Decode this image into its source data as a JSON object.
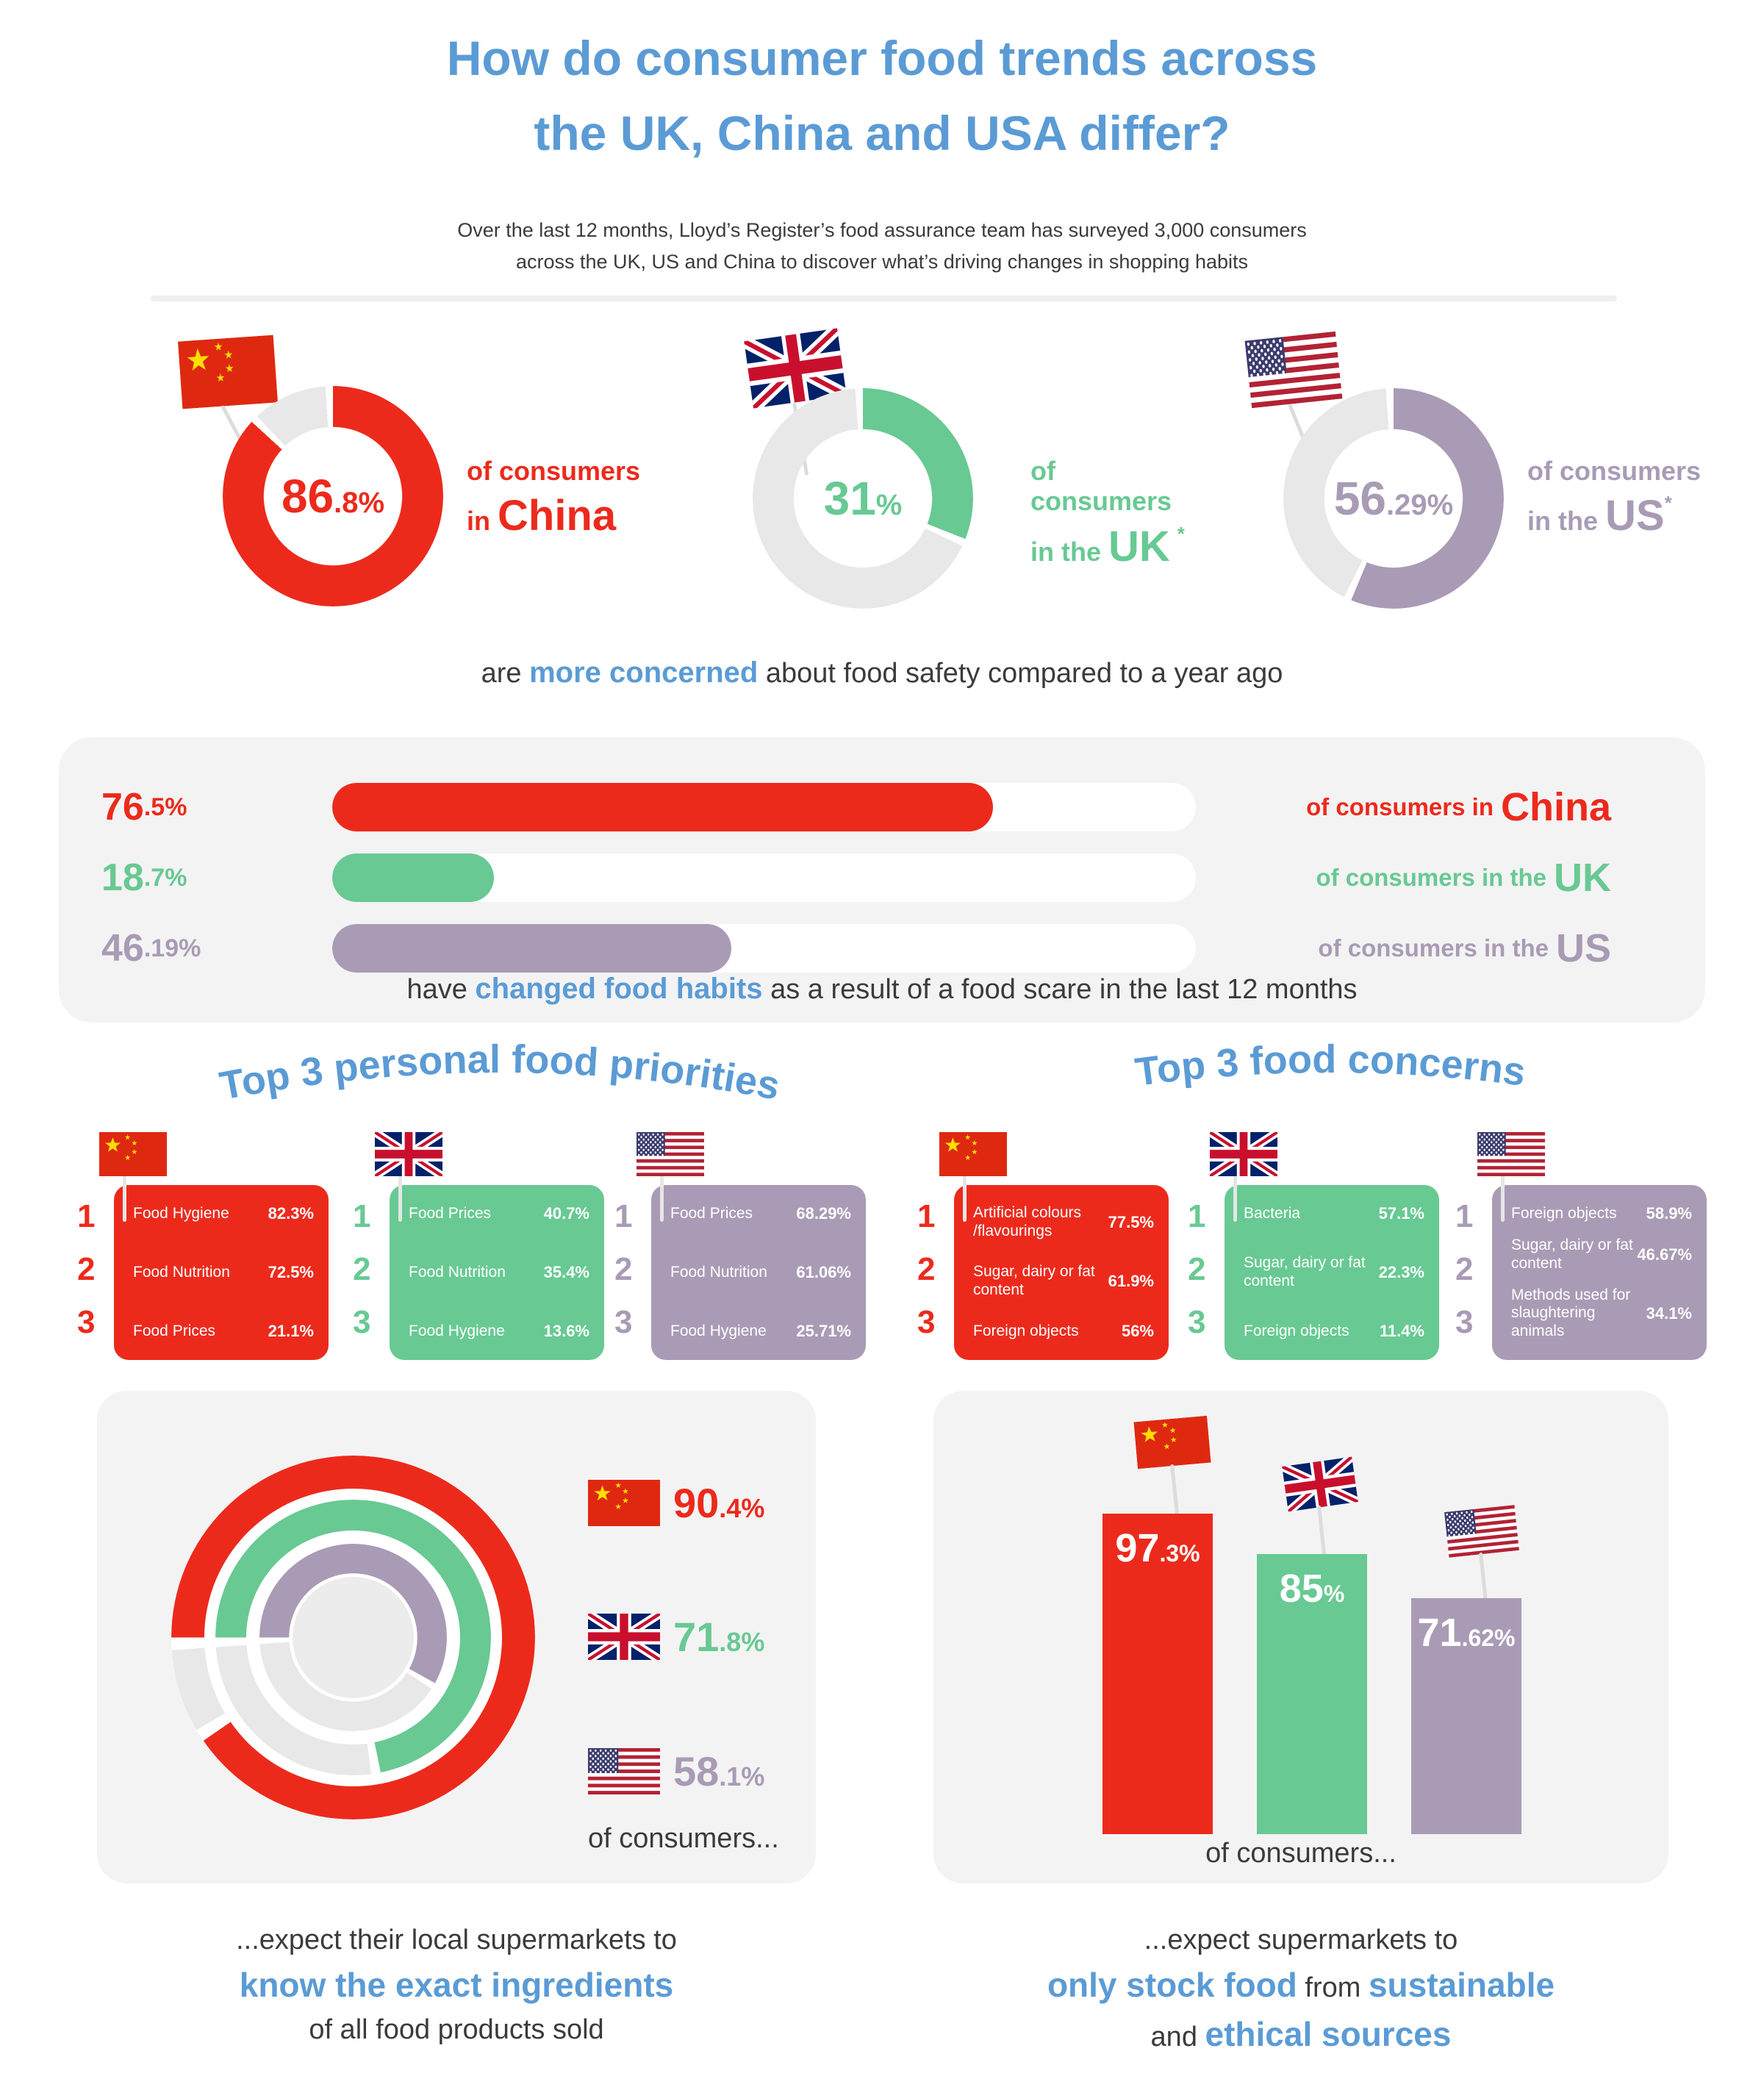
{
  "colors": {
    "red": "#EC2A1C",
    "green": "#68C993",
    "purple": "#A99BB5",
    "blue": "#5B9BD5",
    "dark": "#3B3B3B",
    "card_bg": "#F3F3F3",
    "track_gray": "#E8E8E8",
    "bar_track": "#FFFFFF",
    "divider": "#EFEFEF",
    "ring_center": "#ECECEC",
    "pole": "#DCDCDC"
  },
  "icons": {
    "china": "china-flag-icon",
    "uk": "uk-flag-icon",
    "us": "us-flag-icon"
  },
  "header": {
    "title_line1": "How do consumer food trends across",
    "title_line2": "the UK, China and USA differ?",
    "subtitle_line1": "Over the last 12 months, Lloyd’s Register’s food assurance team has surveyed 3,000 consumers",
    "subtitle_line2": "across the UK, US and China to discover what’s driving changes in shopping habits"
  },
  "safety": {
    "caption_pre": "are ",
    "caption_bold": "more concerned",
    "caption_post": " about food safety compared to a year ago",
    "donuts": [
      {
        "country": "China",
        "percent": 86.8,
        "color": "#EC2A1C",
        "value_int": "86",
        "value_dec": ".8",
        "value_pct": "%",
        "line1": "of consumers",
        "line2_pre": "in ",
        "line2_country": "China",
        "asterisk": ""
      },
      {
        "country": "UK",
        "percent": 31,
        "color": "#68C993",
        "value_int": "31",
        "value_dec": "",
        "value_pct": "%",
        "line1": "of consumers",
        "line2_pre": "in the ",
        "line2_country": "UK",
        "asterisk": "*"
      },
      {
        "country": "US",
        "percent": 56.29,
        "color": "#A99BB5",
        "value_int": "56",
        "value_dec": ".29",
        "value_pct": "%",
        "line1": "of consumers",
        "line2_pre": "in the ",
        "line2_country": "US",
        "asterisk": "*"
      }
    ]
  },
  "habits": {
    "caption_pre": "have ",
    "caption_bold": "changed food habits",
    "caption_post": " as a result of a food scare in the last 12 months",
    "rows": [
      {
        "percent": 76.5,
        "color": "#EC2A1C",
        "value_int": "76",
        "value_dec": ".5",
        "value_pct": "%",
        "label_pre": "of consumers in",
        "country": "China"
      },
      {
        "percent": 18.7,
        "color": "#68C993",
        "value_int": "18",
        "value_dec": ".7",
        "value_pct": "%",
        "label_pre": "of consumers in the",
        "country": "UK"
      },
      {
        "percent": 46.19,
        "color": "#A99BB5",
        "value_int": "46",
        "value_dec": ".19",
        "value_pct": "%",
        "label_pre": "of consumers in the",
        "country": "US"
      }
    ]
  },
  "priorities": {
    "title": "Top 3 personal food priorities",
    "tables": [
      {
        "country": "China",
        "color": "#EC2A1C",
        "rows": [
          {
            "rank": "1",
            "label": "Food Hygiene",
            "value": "82.3%"
          },
          {
            "rank": "2",
            "label": "Food Nutrition",
            "value": "72.5%"
          },
          {
            "rank": "3",
            "label": "Food Prices",
            "value": "21.1%"
          }
        ]
      },
      {
        "country": "UK",
        "color": "#68C993",
        "rows": [
          {
            "rank": "1",
            "label": "Food Prices",
            "value": "40.7%"
          },
          {
            "rank": "2",
            "label": "Food Nutrition",
            "value": "35.4%"
          },
          {
            "rank": "3",
            "label": "Food Hygiene",
            "value": "13.6%"
          }
        ]
      },
      {
        "country": "US",
        "color": "#A99BB5",
        "rows": [
          {
            "rank": "1",
            "label": "Food Prices",
            "value": "68.29%"
          },
          {
            "rank": "2",
            "label": "Food Nutrition",
            "value": "61.06%"
          },
          {
            "rank": "3",
            "label": "Food Hygiene",
            "value": "25.71%"
          }
        ]
      }
    ]
  },
  "concerns": {
    "title": "Top 3 food concerns",
    "tables": [
      {
        "country": "China",
        "color": "#EC2A1C",
        "rows": [
          {
            "rank": "1",
            "label": "Artificial colours /flavourings",
            "value": "77.5%"
          },
          {
            "rank": "2",
            "label": "Sugar, dairy or fat content",
            "value": "61.9%"
          },
          {
            "rank": "3",
            "label": "Foreign objects",
            "value": "56%"
          }
        ]
      },
      {
        "country": "UK",
        "color": "#68C993",
        "rows": [
          {
            "rank": "1",
            "label": "Bacteria",
            "value": "57.1%"
          },
          {
            "rank": "2",
            "label": "Sugar, dairy or fat content",
            "value": "22.3%"
          },
          {
            "rank": "3",
            "label": "Foreign objects",
            "value": "11.4%"
          }
        ]
      },
      {
        "country": "US",
        "color": "#A99BB5",
        "rows": [
          {
            "rank": "1",
            "label": "Foreign objects",
            "value": "58.9%"
          },
          {
            "rank": "2",
            "label": "Sugar, dairy or fat content",
            "value": "46.67%"
          },
          {
            "rank": "3",
            "label": "Methods used for slaughtering animals",
            "value": "34.1%"
          }
        ]
      }
    ]
  },
  "ingredients": {
    "rings": [
      {
        "country": "China",
        "percent": 90.4,
        "color": "#EC2A1C",
        "value_int": "90",
        "value_dec": ".4",
        "value_pct": "%"
      },
      {
        "country": "UK",
        "percent": 71.8,
        "color": "#68C993",
        "value_int": "71",
        "value_dec": ".8",
        "value_pct": "%"
      },
      {
        "country": "US",
        "percent": 58.1,
        "color": "#A99BB5",
        "value_int": "58",
        "value_dec": ".1",
        "value_pct": "%"
      }
    ],
    "footer": "of consumers...",
    "caption_line1": "...expect their local supermarkets to",
    "caption_bold": "know the exact ingredients",
    "caption_line3": "of all food products sold"
  },
  "sustainable": {
    "bars": [
      {
        "country": "China",
        "percent": 97.3,
        "color": "#EC2A1C",
        "value_int": "97",
        "value_dec": ".3",
        "value_pct": "%"
      },
      {
        "country": "UK",
        "percent": 85,
        "color": "#68C993",
        "value_int": "85",
        "value_dec": "",
        "value_pct": "%"
      },
      {
        "country": "US",
        "percent": 71.62,
        "color": "#A99BB5",
        "value_int": "71",
        "value_dec": ".62",
        "value_pct": "%"
      }
    ],
    "footer": "of consumers...",
    "caption_line1": "...expect supermarkets to",
    "caption_bold1": "only stock food",
    "caption_mid": " from ",
    "caption_bold2": "sustainable",
    "caption_pre3": "and ",
    "caption_bold3": "ethical sources"
  },
  "chart_data": [
    {
      "type": "pie",
      "title": "are more concerned about food safety compared to a year ago",
      "categories": [
        "China",
        "UK",
        "US"
      ],
      "values": [
        86.8,
        31,
        56.29
      ],
      "unit": "%"
    },
    {
      "type": "bar",
      "title": "have changed food habits as a result of a food scare in the last 12 months",
      "categories": [
        "China",
        "UK",
        "US"
      ],
      "values": [
        76.5,
        18.7,
        46.19
      ],
      "unit": "%",
      "orientation": "horizontal",
      "xlim": [
        0,
        100
      ]
    },
    {
      "type": "table",
      "title": "Top 3 personal food priorities",
      "series": [
        {
          "name": "China",
          "rows": [
            [
              "Food Hygiene",
              82.3
            ],
            [
              "Food Nutrition",
              72.5
            ],
            [
              "Food Prices",
              21.1
            ]
          ]
        },
        {
          "name": "UK",
          "rows": [
            [
              "Food Prices",
              40.7
            ],
            [
              "Food Nutrition",
              35.4
            ],
            [
              "Food Hygiene",
              13.6
            ]
          ]
        },
        {
          "name": "US",
          "rows": [
            [
              "Food Prices",
              68.29
            ],
            [
              "Food Nutrition",
              61.06
            ],
            [
              "Food Hygiene",
              25.71
            ]
          ]
        }
      ]
    },
    {
      "type": "table",
      "title": "Top 3 food concerns",
      "series": [
        {
          "name": "China",
          "rows": [
            [
              "Artificial colours /flavourings",
              77.5
            ],
            [
              "Sugar, dairy or fat content",
              61.9
            ],
            [
              "Foreign objects",
              56
            ]
          ]
        },
        {
          "name": "UK",
          "rows": [
            [
              "Bacteria",
              57.1
            ],
            [
              "Sugar, dairy or fat content",
              22.3
            ],
            [
              "Foreign objects",
              11.4
            ]
          ]
        },
        {
          "name": "US",
          "rows": [
            [
              "Foreign objects",
              58.9
            ],
            [
              "Sugar, dairy or fat content",
              46.67
            ],
            [
              "Methods used for slaughtering animals",
              34.1
            ]
          ]
        }
      ]
    },
    {
      "type": "pie",
      "title": "expect their local supermarkets to know the exact ingredients of all food products sold",
      "categories": [
        "China",
        "UK",
        "US"
      ],
      "values": [
        90.4,
        71.8,
        58.1
      ],
      "unit": "%",
      "layout": "concentric-rings"
    },
    {
      "type": "bar",
      "title": "expect supermarkets to only stock food from sustainable and ethical sources",
      "categories": [
        "China",
        "UK",
        "US"
      ],
      "values": [
        97.3,
        85,
        71.62
      ],
      "unit": "%",
      "orientation": "vertical",
      "ylim": [
        0,
        100
      ]
    }
  ]
}
